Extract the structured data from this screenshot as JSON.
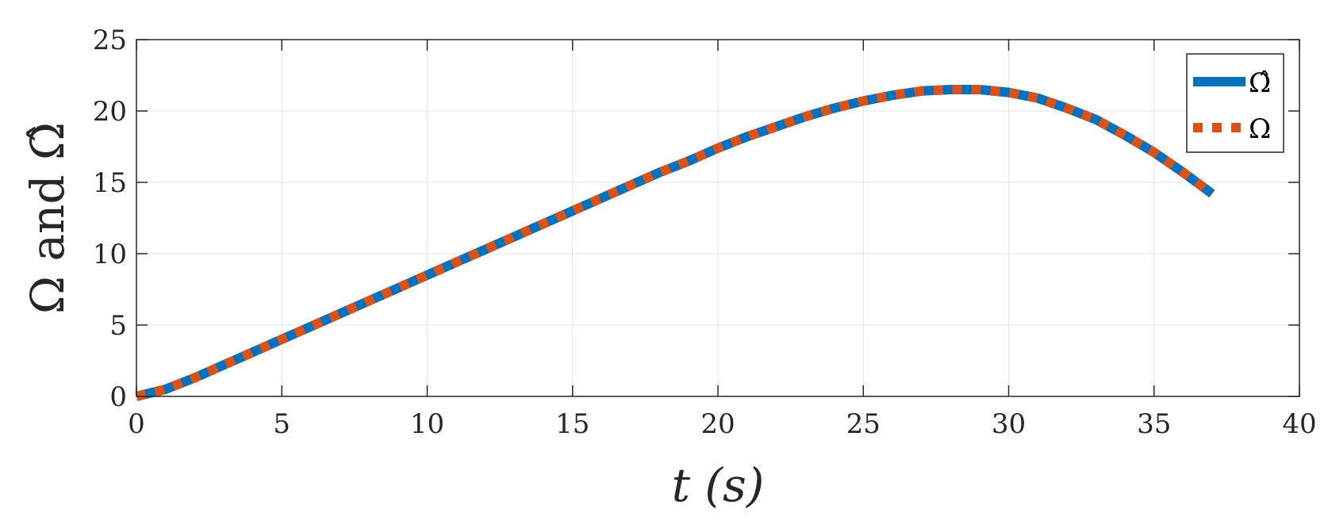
{
  "chart_data": {
    "type": "line",
    "xlabel": "t (s)",
    "ylabel": "Ω and Ω̂",
    "xlim": [
      0,
      40
    ],
    "ylim": [
      0,
      25
    ],
    "xticks": [
      "0",
      "5",
      "10",
      "15",
      "20",
      "25",
      "30",
      "35",
      "40"
    ],
    "yticks": [
      "0",
      "5",
      "10",
      "15",
      "20",
      "25"
    ],
    "grid": true,
    "legend_position": "top-right",
    "x": [
      0,
      1,
      2,
      3,
      4,
      5,
      6,
      7,
      8,
      9,
      10,
      11,
      12,
      13,
      14,
      15,
      16,
      17,
      18,
      19,
      20,
      21,
      22,
      23,
      24,
      25,
      26,
      27,
      28,
      29,
      30,
      31,
      32,
      33,
      34,
      35,
      36,
      37
    ],
    "series": [
      {
        "name": "Ω̂",
        "color": "#0072BD",
        "style": "solid",
        "values": [
          0.0,
          0.5,
          1.3,
          2.2,
          3.1,
          4.0,
          4.9,
          5.8,
          6.7,
          7.6,
          8.5,
          9.4,
          10.3,
          11.2,
          12.1,
          13.0,
          13.9,
          14.8,
          15.7,
          16.5,
          17.4,
          18.2,
          18.9,
          19.6,
          20.2,
          20.7,
          21.1,
          21.4,
          21.5,
          21.5,
          21.3,
          20.9,
          20.2,
          19.4,
          18.3,
          17.1,
          15.7,
          14.2
        ]
      },
      {
        "name": "Ω",
        "color": "#D95319",
        "style": "dotted",
        "values": [
          0.0,
          0.5,
          1.3,
          2.2,
          3.1,
          4.0,
          4.9,
          5.8,
          6.7,
          7.6,
          8.5,
          9.4,
          10.3,
          11.2,
          12.1,
          13.0,
          13.9,
          14.8,
          15.7,
          16.5,
          17.4,
          18.2,
          18.9,
          19.6,
          20.2,
          20.7,
          21.1,
          21.4,
          21.5,
          21.5,
          21.3,
          20.9,
          20.2,
          19.4,
          18.3,
          17.1,
          15.7,
          14.2
        ]
      }
    ]
  }
}
